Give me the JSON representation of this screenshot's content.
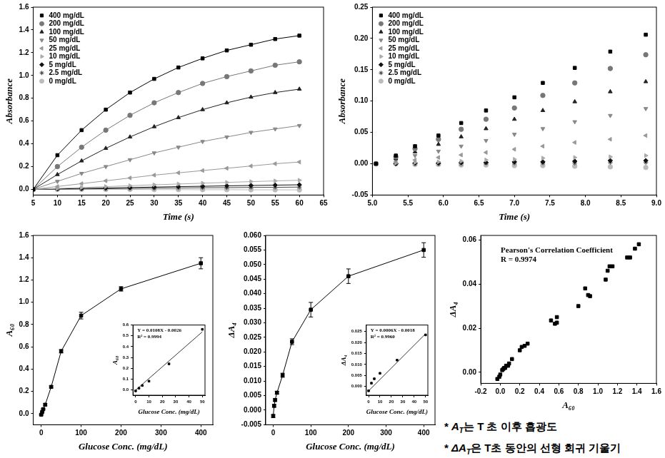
{
  "chart_data": [
    {
      "type": "line",
      "line_style": "solid",
      "x_label": "Time (s)",
      "y_label": "Absorbance",
      "x": [
        5,
        10,
        15,
        20,
        25,
        30,
        35,
        40,
        45,
        50,
        55,
        60
      ],
      "xlim": [
        5,
        65
      ],
      "xticks": [
        5,
        10,
        15,
        20,
        25,
        30,
        35,
        40,
        45,
        50,
        55,
        60,
        65
      ],
      "ylim": [
        -0.05,
        1.6
      ],
      "yticks": [
        {
          "value": 0,
          "label": "0.0"
        },
        0.2,
        0.4,
        0.6,
        0.8,
        {
          "value": 1,
          "label": "1.0"
        },
        1.2,
        1.4,
        1.6
      ],
      "grid": false,
      "legend": "upper left",
      "series": [
        {
          "name": "400 mg/dL",
          "color": "#000000",
          "marker": "square",
          "values": [
            0,
            0.3,
            0.52,
            0.7,
            0.85,
            0.97,
            1.07,
            1.15,
            1.22,
            1.27,
            1.32,
            1.35
          ]
        },
        {
          "name": "200 mg/dL",
          "color": "#777777",
          "marker": "circle",
          "values": [
            0,
            0.2,
            0.37,
            0.52,
            0.65,
            0.76,
            0.85,
            0.93,
            0.99,
            1.04,
            1.09,
            1.12
          ]
        },
        {
          "name": "100 mg/dL",
          "color": "#222222",
          "marker": "triangle",
          "values": [
            0,
            0.13,
            0.25,
            0.36,
            0.46,
            0.55,
            0.63,
            0.7,
            0.76,
            0.81,
            0.85,
            0.88
          ]
        },
        {
          "name": "50 mg/dL",
          "color": "#888888",
          "marker": "triangle_down",
          "values": [
            0,
            0.07,
            0.14,
            0.2,
            0.26,
            0.32,
            0.37,
            0.42,
            0.46,
            0.5,
            0.53,
            0.56
          ]
        },
        {
          "name": "25 mg/dL",
          "color": "#999999",
          "marker": "triangle_left",
          "values": [
            0,
            0.025,
            0.05,
            0.075,
            0.1,
            0.125,
            0.145,
            0.165,
            0.185,
            0.205,
            0.225,
            0.24
          ]
        },
        {
          "name": "10 mg/dL",
          "color": "#aaaaaa",
          "marker": "triangle_right",
          "values": [
            0,
            0.008,
            0.016,
            0.024,
            0.032,
            0.04,
            0.047,
            0.054,
            0.061,
            0.068,
            0.074,
            0.08
          ]
        },
        {
          "name": "5 mg/dL",
          "color": "#111111",
          "marker": "diamond",
          "values": [
            0,
            0.004,
            0.008,
            0.012,
            0.016,
            0.02,
            0.024,
            0.027,
            0.031,
            0.034,
            0.037,
            0.04
          ]
        },
        {
          "name": "2.5 mg/dL",
          "color": "#444444",
          "marker": "star",
          "values": [
            0,
            0.002,
            0.004,
            0.006,
            0.008,
            0.01,
            0.012,
            0.014,
            0.015,
            0.017,
            0.018,
            0.02
          ]
        },
        {
          "name": "0 mg/dL",
          "color": "#bbbbbb",
          "marker": "circle",
          "values": [
            0,
            0,
            0,
            -0.001,
            -0.001,
            -0.002,
            -0.002,
            -0.003,
            -0.003,
            -0.004,
            -0.004,
            -0.005
          ]
        }
      ]
    },
    {
      "type": "scatter",
      "x_label": "Time (s)",
      "y_label": "Absorbance",
      "x": [
        5.05,
        5.33,
        5.6,
        5.93,
        6.25,
        6.6,
        7.0,
        7.4,
        7.85,
        8.35,
        8.85
      ],
      "xlim": [
        5,
        9
      ],
      "xticks": [
        {
          "value": 5,
          "label": "5.0"
        },
        5.5,
        {
          "value": 6,
          "label": "6.0"
        },
        6.5,
        {
          "value": 7,
          "label": "7.0"
        },
        7.5,
        {
          "value": 8,
          "label": "8.0"
        },
        8.5,
        {
          "value": 9,
          "label": "9.0"
        }
      ],
      "ylim": [
        -0.05,
        0.25
      ],
      "yticks": [
        -0.05,
        {
          "value": 0,
          "label": "0.00"
        },
        0.05,
        {
          "value": 0.1,
          "label": "0.10"
        },
        0.15,
        {
          "value": 0.2,
          "label": "0.20"
        },
        0.25
      ],
      "grid": false,
      "legend": "upper left",
      "series": [
        {
          "name": "400 mg/dL",
          "color": "#000000",
          "marker": "square",
          "values": [
            0,
            0.013,
            0.028,
            0.045,
            0.065,
            0.085,
            0.106,
            0.129,
            0.153,
            0.179,
            0.206
          ]
        },
        {
          "name": "200 mg/dL",
          "color": "#777777",
          "marker": "circle",
          "values": [
            0,
            0.011,
            0.024,
            0.039,
            0.055,
            0.071,
            0.089,
            0.109,
            0.129,
            0.152,
            0.174
          ]
        },
        {
          "name": "100 mg/dL",
          "color": "#222222",
          "marker": "triangle",
          "values": [
            0,
            0.008,
            0.019,
            0.031,
            0.043,
            0.056,
            0.071,
            0.085,
            0.099,
            0.115,
            0.131
          ]
        },
        {
          "name": "50 mg/dL",
          "color": "#888888",
          "marker": "triangle_down",
          "values": [
            0,
            0.006,
            0.013,
            0.02,
            0.028,
            0.037,
            0.047,
            0.056,
            0.067,
            0.077,
            0.088
          ]
        },
        {
          "name": "25 mg/dL",
          "color": "#999999",
          "marker": "triangle_left",
          "values": [
            0,
            0.003,
            0.006,
            0.01,
            0.014,
            0.018,
            0.023,
            0.028,
            0.034,
            0.039,
            0.045
          ]
        },
        {
          "name": "10 mg/dL",
          "color": "#aaaaaa",
          "marker": "triangle_right",
          "values": [
            0,
            0.001,
            0.002,
            0.003,
            0.004,
            0.006,
            0.007,
            0.009,
            0.01,
            0.011,
            0.013
          ]
        },
        {
          "name": "5 mg/dL",
          "color": "#111111",
          "marker": "diamond",
          "values": [
            0,
            0,
            0.001,
            0.001,
            0.002,
            0.002,
            0.003,
            0.003,
            0.004,
            0.005,
            0.005
          ]
        },
        {
          "name": "2.5 mg/dL",
          "color": "#444444",
          "marker": "star",
          "values": [
            0,
            0,
            0,
            0,
            0,
            0.001,
            0.001,
            0.001,
            0.001,
            0.002,
            0.002
          ]
        },
        {
          "name": "0 mg/dL",
          "color": "#bbbbbb",
          "marker": "circle",
          "values": [
            0,
            0,
            -0.001,
            -0.001,
            -0.002,
            -0.002,
            -0.003,
            -0.003,
            -0.004,
            -0.005,
            -0.006
          ]
        }
      ]
    },
    {
      "type": "line",
      "line_style": "solid",
      "x_label": "Glucose Conc. (mg/dL)",
      "y_label": "A₆₀",
      "x": [
        0,
        2.5,
        5,
        10,
        25,
        50,
        100,
        200,
        400
      ],
      "values": [
        -0.01,
        0.015,
        0.04,
        0.08,
        0.24,
        0.56,
        0.88,
        1.12,
        1.35
      ],
      "errors": [
        0.005,
        0.005,
        0.005,
        0.01,
        0.01,
        0.015,
        0.03,
        0.02,
        0.05
      ],
      "color": "#000000",
      "marker": "square",
      "xlim": [
        -20,
        430
      ],
      "xticks": [
        0,
        100,
        200,
        300,
        400
      ],
      "ylim": [
        -0.1,
        1.6
      ],
      "yticks": [
        {
          "value": 0,
          "label": "0.0"
        },
        0.2,
        0.4,
        0.6,
        0.8,
        {
          "value": 1,
          "label": "1.0"
        },
        1.2,
        1.4,
        1.6
      ],
      "grid": false,
      "inset": {
        "type": "scatter",
        "x_label": "Glucose Conc. (mg/dL)",
        "y_label": "A₆₀",
        "x": [
          0,
          2.5,
          5,
          10,
          25,
          50
        ],
        "values": [
          -0.01,
          0.015,
          0.04,
          0.08,
          0.24,
          0.56
        ],
        "color": "#000000",
        "marker": "square",
        "fit": {
          "x": [
            0,
            50
          ],
          "values": [
            -0.003,
            0.537
          ]
        },
        "annotations": [
          "Y = 0.0108X - 0.0026",
          "R² = 0.9994"
        ],
        "xlim": [
          -2,
          52
        ],
        "xticks": [
          0,
          10,
          20,
          30,
          40,
          50
        ],
        "ylim": [
          -0.05,
          0.6
        ],
        "yticks": [
          {
            "value": 0,
            "label": "0.0"
          },
          0.1,
          0.2,
          0.3,
          0.4,
          0.5,
          0.6
        ],
        "grid": false
      }
    },
    {
      "type": "line",
      "line_style": "solid",
      "x_label": "Glucose Conc. (mg/dL)",
      "y_label": "ΔA₄",
      "x": [
        0,
        2.5,
        5,
        10,
        25,
        50,
        100,
        200,
        400
      ],
      "values": [
        -0.002,
        0.0015,
        0.0035,
        0.006,
        0.012,
        0.0235,
        0.0345,
        0.046,
        0.055
      ],
      "errors": [
        0.0005,
        0.0005,
        0.0005,
        0.0005,
        0.0007,
        0.001,
        0.0025,
        0.0025,
        0.0025
      ],
      "color": "#000000",
      "marker": "square",
      "xlim": [
        -20,
        430
      ],
      "xticks": [
        0,
        100,
        200,
        300,
        400
      ],
      "ylim": [
        -0.005,
        0.06
      ],
      "yticks": [
        -0.005,
        {
          "value": 0,
          "label": "0.000"
        },
        0.005,
        {
          "value": 0.01,
          "label": "0.010"
        },
        0.015,
        {
          "value": 0.02,
          "label": "0.020"
        },
        0.025,
        {
          "value": 0.03,
          "label": "0.030"
        },
        0.035,
        {
          "value": 0.04,
          "label": "0.040"
        },
        0.045,
        {
          "value": 0.05,
          "label": "0.050"
        },
        0.055,
        {
          "value": 0.06,
          "label": "0.060"
        }
      ],
      "grid": false,
      "inset": {
        "type": "scatter",
        "x_label": "Glucose Conc. (mg/dL)",
        "y_label": "ΔA₄",
        "x": [
          0,
          2.5,
          5,
          10,
          25,
          50
        ],
        "values": [
          -0.002,
          0.0015,
          0.0035,
          0.006,
          0.012,
          0.0235
        ],
        "color": "#000000",
        "marker": "square",
        "fit": {
          "x": [
            0,
            50
          ],
          "values": [
            -0.002,
            0.024
          ]
        },
        "annotations": [
          "Y = 0.0006X - 0.0018",
          "R² = 0.9960"
        ],
        "xlim": [
          -2,
          52
        ],
        "xticks": [
          0,
          10,
          20,
          30,
          40,
          50
        ],
        "ylim": [
          -0.004,
          0.028
        ],
        "yticks": [
          {
            "value": 0,
            "label": "0.000"
          },
          0.005,
          {
            "value": 0.01,
            "label": "0.010"
          },
          0.015,
          {
            "value": 0.02,
            "label": "0.020"
          },
          0.025
        ],
        "grid": false
      }
    },
    {
      "type": "scatter",
      "x_label": "A₆₀",
      "y_label": "ΔA₄",
      "x": [
        -0.03,
        -0.01,
        0,
        0.02,
        0.03,
        0.04,
        0.05,
        0.06,
        0.08,
        0.09,
        0.12,
        0.2,
        0.22,
        0.25,
        0.28,
        0.52,
        0.56,
        0.58,
        0.58,
        0.8,
        0.87,
        0.9,
        0.92,
        1.08,
        1.1,
        1.12,
        1.15,
        1.3,
        1.33,
        1.38,
        1.42
      ],
      "values": [
        -0.003,
        -0.002,
        -0.001,
        0.001,
        0.0015,
        0.002,
        0.002,
        0.003,
        0.003,
        0.004,
        0.006,
        0.01,
        0.0115,
        0.012,
        0.013,
        0.0235,
        0.022,
        0.0225,
        0.025,
        0.03,
        0.038,
        0.035,
        0.0345,
        0.042,
        0.046,
        0.048,
        0.048,
        0.052,
        0.052,
        0.056,
        0.058
      ],
      "color": "#000000",
      "marker": "square",
      "annotations": [
        "Pearson's Correlation Coefficient",
        "R = 0.9974"
      ],
      "xlim": [
        -0.2,
        1.6
      ],
      "xticks": [
        -0.2,
        {
          "value": 0,
          "label": "0.0"
        },
        0.2,
        0.4,
        0.6,
        0.8,
        {
          "value": 1,
          "label": "1.0"
        },
        1.2,
        1.4,
        1.6
      ],
      "ylim": [
        -0.005,
        0.062
      ],
      "yticks": [
        {
          "value": 0,
          "label": "0.00"
        },
        0.02,
        0.04,
        0.06
      ],
      "grid": false
    }
  ],
  "notes": [
    {
      "prefix": "*",
      "symbol": "A",
      "subscript": "T",
      "text": "는 T 초 이후 흡광도"
    },
    {
      "prefix": "*",
      "symbol": "ΔA",
      "subscript": "T",
      "text": "은 T초 동안의 선형 회귀 기울기"
    }
  ]
}
